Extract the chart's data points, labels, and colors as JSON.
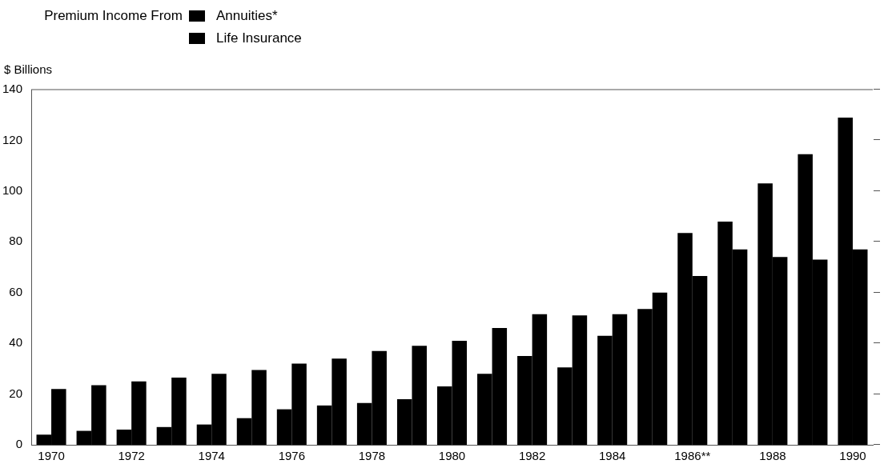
{
  "chart_data": {
    "type": "bar",
    "legend_title": "Premium Income From",
    "ylabel": "$ Billions",
    "categories": [
      "1970",
      null,
      "1972",
      null,
      "1974",
      null,
      "1976",
      null,
      "1978",
      null,
      "1980",
      null,
      "1982",
      null,
      "1984",
      null,
      "1986**",
      null,
      "1988",
      null,
      "1990"
    ],
    "series": [
      {
        "name": "Annuities*",
        "color": "#000000",
        "values": [
          4,
          5.5,
          6,
          7,
          8,
          10.5,
          14,
          15.5,
          16.5,
          18,
          23,
          28,
          35,
          30.5,
          43,
          53.5,
          83.5,
          88,
          103,
          114.5,
          129
        ]
      },
      {
        "name": "Life Insurance",
        "color": "#000000",
        "values": [
          22,
          23.5,
          25,
          26.5,
          28,
          29.5,
          32,
          34,
          37,
          39,
          41,
          46,
          51.5,
          51,
          51.5,
          60,
          66.5,
          77,
          74,
          73,
          77
        ]
      }
    ],
    "ylim": [
      0,
      140
    ],
    "yticks": [
      0,
      20,
      40,
      60,
      80,
      100,
      120,
      140
    ],
    "grid": false,
    "legend": "top left"
  }
}
